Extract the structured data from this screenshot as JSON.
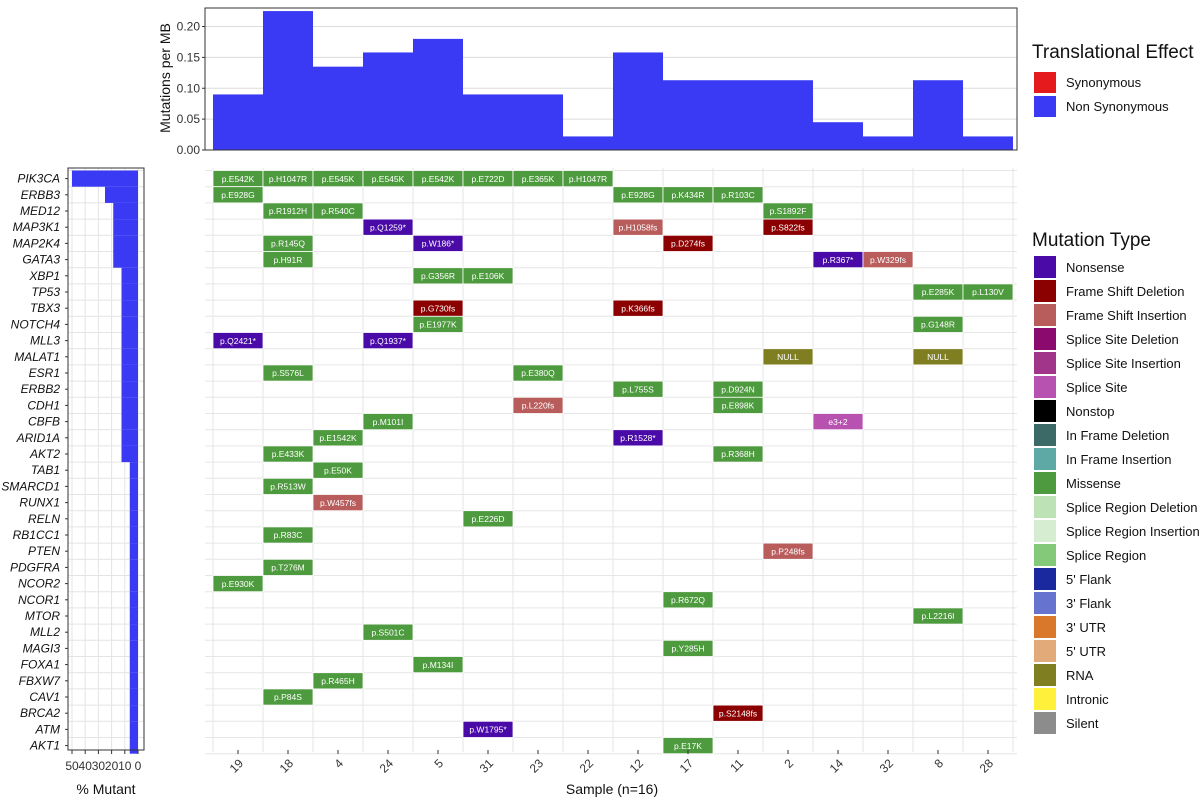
{
  "chart_data": [
    {
      "type": "bar",
      "panel": "mutation-burden",
      "ylabel": "Mutations per MB",
      "yticks": [
        "0.00",
        "0.05",
        "0.10",
        "0.15",
        "0.20"
      ],
      "ylim": [
        0,
        0.23
      ],
      "categories": [
        "19",
        "18",
        "4",
        "24",
        "5",
        "31",
        "23",
        "22",
        "12",
        "17",
        "11",
        "2",
        "14",
        "32",
        "8",
        "28"
      ],
      "series": [
        {
          "name": "Synonymous",
          "color": "#E41A1C",
          "values": [
            0,
            0,
            0,
            0,
            0,
            0,
            0,
            0,
            0,
            0,
            0,
            0,
            0,
            0,
            0,
            0
          ]
        },
        {
          "name": "Non Synonymous",
          "color": "#3A3AF5",
          "values": [
            0.09,
            0.225,
            0.135,
            0.158,
            0.18,
            0.09,
            0.09,
            0.022,
            0.158,
            0.113,
            0.113,
            0.113,
            0.045,
            0.022,
            0.113,
            0.022
          ]
        }
      ],
      "legend_title": "Translational Effect",
      "legend_position": "right"
    },
    {
      "type": "heatmap",
      "panel": "mutation-grid",
      "xlabel": "Sample (n=16)",
      "samples": [
        "19",
        "18",
        "4",
        "24",
        "5",
        "31",
        "23",
        "22",
        "12",
        "17",
        "11",
        "2",
        "14",
        "32",
        "8",
        "28"
      ],
      "genes": [
        "PIK3CA",
        "ERBB3",
        "MED12",
        "MAP3K1",
        "MAP2K4",
        "GATA3",
        "XBP1",
        "TP53",
        "TBX3",
        "NOTCH4",
        "MLL3",
        "MALAT1",
        "ESR1",
        "ERBB2",
        "CDH1",
        "CBFB",
        "ARID1A",
        "AKT2",
        "TAB1",
        "SMARCD1",
        "RUNX1",
        "RELN",
        "RB1CC1",
        "PTEN",
        "PDGFRA",
        "NCOR2",
        "NCOR1",
        "MTOR",
        "MLL2",
        "MAGI3",
        "FOXA1",
        "FBXW7",
        "CAV1",
        "BRCA2",
        "ATM",
        "AKT1"
      ],
      "cells": [
        {
          "g": "PIK3CA",
          "s": "19",
          "label": "p.E542K",
          "type": "Missense"
        },
        {
          "g": "PIK3CA",
          "s": "18",
          "label": "p.H1047R",
          "type": "Missense"
        },
        {
          "g": "PIK3CA",
          "s": "4",
          "label": "p.E545K",
          "type": "Missense"
        },
        {
          "g": "PIK3CA",
          "s": "24",
          "label": "p.E545K",
          "type": "Missense"
        },
        {
          "g": "PIK3CA",
          "s": "5",
          "label": "p.E542K",
          "type": "Missense"
        },
        {
          "g": "PIK3CA",
          "s": "31",
          "label": "p.E722D",
          "type": "Missense"
        },
        {
          "g": "PIK3CA",
          "s": "23",
          "label": "p.E365K",
          "type": "Missense"
        },
        {
          "g": "PIK3CA",
          "s": "22",
          "label": "p.H1047R",
          "type": "Missense"
        },
        {
          "g": "ERBB3",
          "s": "19",
          "label": "p.E928G",
          "type": "Missense"
        },
        {
          "g": "ERBB3",
          "s": "12",
          "label": "p.E928G",
          "type": "Missense"
        },
        {
          "g": "ERBB3",
          "s": "17",
          "label": "p.K434R",
          "type": "Missense"
        },
        {
          "g": "ERBB3",
          "s": "11",
          "label": "p.R103C",
          "type": "Missense"
        },
        {
          "g": "MED12",
          "s": "18",
          "label": "p.R1912H",
          "type": "Missense"
        },
        {
          "g": "MED12",
          "s": "4",
          "label": "p.R540C",
          "type": "Missense"
        },
        {
          "g": "MED12",
          "s": "2",
          "label": "p.S1892F",
          "type": "Missense"
        },
        {
          "g": "MAP3K1",
          "s": "24",
          "label": "p.Q1259*",
          "type": "Nonsense"
        },
        {
          "g": "MAP3K1",
          "s": "12",
          "label": "p.H1058fs",
          "type": "Frame Shift Insertion"
        },
        {
          "g": "MAP3K1",
          "s": "2",
          "label": "p.S822fs",
          "type": "Frame Shift Deletion"
        },
        {
          "g": "MAP2K4",
          "s": "18",
          "label": "p.R145Q",
          "type": "Missense"
        },
        {
          "g": "MAP2K4",
          "s": "5",
          "label": "p.W186*",
          "type": "Nonsense"
        },
        {
          "g": "MAP2K4",
          "s": "17",
          "label": "p.D274fs",
          "type": "Frame Shift Deletion"
        },
        {
          "g": "GATA3",
          "s": "18",
          "label": "p.H91R",
          "type": "Missense"
        },
        {
          "g": "GATA3",
          "s": "14",
          "label": "p.R367*",
          "type": "Nonsense"
        },
        {
          "g": "GATA3",
          "s": "32",
          "label": "p.W329fs",
          "type": "Frame Shift Insertion"
        },
        {
          "g": "XBP1",
          "s": "5",
          "label": "p.G356R",
          "type": "Missense"
        },
        {
          "g": "XBP1",
          "s": "31",
          "label": "p.E106K",
          "type": "Missense"
        },
        {
          "g": "TP53",
          "s": "8",
          "label": "p.E285K",
          "type": "Missense"
        },
        {
          "g": "TP53",
          "s": "28",
          "label": "p.L130V",
          "type": "Missense"
        },
        {
          "g": "TBX3",
          "s": "5",
          "label": "p.G730fs",
          "type": "Frame Shift Deletion"
        },
        {
          "g": "TBX3",
          "s": "12",
          "label": "p.K366fs",
          "type": "Frame Shift Deletion"
        },
        {
          "g": "NOTCH4",
          "s": "5",
          "label": "p.E1977K",
          "type": "Missense"
        },
        {
          "g": "NOTCH4",
          "s": "8",
          "label": "p.G148R",
          "type": "Missense"
        },
        {
          "g": "MLL3",
          "s": "19",
          "label": "p.Q2421*",
          "type": "Nonsense"
        },
        {
          "g": "MLL3",
          "s": "24",
          "label": "p.Q1937*",
          "type": "Nonsense"
        },
        {
          "g": "MALAT1",
          "s": "2",
          "label": "NULL",
          "type": "RNA"
        },
        {
          "g": "MALAT1",
          "s": "8",
          "label": "NULL",
          "type": "RNA"
        },
        {
          "g": "ESR1",
          "s": "18",
          "label": "p.S576L",
          "type": "Missense"
        },
        {
          "g": "ESR1",
          "s": "23",
          "label": "p.E380Q",
          "type": "Missense"
        },
        {
          "g": "ERBB2",
          "s": "12",
          "label": "p.L755S",
          "type": "Missense"
        },
        {
          "g": "ERBB2",
          "s": "11",
          "label": "p.D924N",
          "type": "Missense"
        },
        {
          "g": "CDH1",
          "s": "23",
          "label": "p.L220fs",
          "type": "Frame Shift Insertion"
        },
        {
          "g": "CDH1",
          "s": "11",
          "label": "p.E898K",
          "type": "Missense"
        },
        {
          "g": "CBFB",
          "s": "24",
          "label": "p.M101I",
          "type": "Missense"
        },
        {
          "g": "CBFB",
          "s": "14",
          "label": "e3+2",
          "type": "Splice Site"
        },
        {
          "g": "ARID1A",
          "s": "4",
          "label": "p.E1542K",
          "type": "Missense"
        },
        {
          "g": "ARID1A",
          "s": "12",
          "label": "p.R1528*",
          "type": "Nonsense"
        },
        {
          "g": "AKT2",
          "s": "18",
          "label": "p.E433K",
          "type": "Missense"
        },
        {
          "g": "AKT2",
          "s": "11",
          "label": "p.R368H",
          "type": "Missense"
        },
        {
          "g": "TAB1",
          "s": "4",
          "label": "p.E50K",
          "type": "Missense"
        },
        {
          "g": "SMARCD1",
          "s": "18",
          "label": "p.R513W",
          "type": "Missense"
        },
        {
          "g": "RUNX1",
          "s": "4",
          "label": "p.W457fs",
          "type": "Frame Shift Insertion"
        },
        {
          "g": "RELN",
          "s": "31",
          "label": "p.E226D",
          "type": "Missense"
        },
        {
          "g": "RB1CC1",
          "s": "18",
          "label": "p.R83C",
          "type": "Missense"
        },
        {
          "g": "PTEN",
          "s": "2",
          "label": "p.P248fs",
          "type": "Frame Shift Insertion"
        },
        {
          "g": "PDGFRA",
          "s": "18",
          "label": "p.T276M",
          "type": "Missense"
        },
        {
          "g": "NCOR2",
          "s": "19",
          "label": "p.E930K",
          "type": "Missense"
        },
        {
          "g": "NCOR1",
          "s": "17",
          "label": "p.R672Q",
          "type": "Missense"
        },
        {
          "g": "MTOR",
          "s": "8",
          "label": "p.L2216I",
          "type": "Missense"
        },
        {
          "g": "MLL2",
          "s": "24",
          "label": "p.S501C",
          "type": "Missense"
        },
        {
          "g": "MAGI3",
          "s": "17",
          "label": "p.Y285H",
          "type": "Missense"
        },
        {
          "g": "FOXA1",
          "s": "5",
          "label": "p.M134I",
          "type": "Missense"
        },
        {
          "g": "FBXW7",
          "s": "4",
          "label": "p.R465H",
          "type": "Missense"
        },
        {
          "g": "CAV1",
          "s": "18",
          "label": "p.P84S",
          "type": "Missense"
        },
        {
          "g": "BRCA2",
          "s": "11",
          "label": "p.S2148fs",
          "type": "Frame Shift Deletion"
        },
        {
          "g": "ATM",
          "s": "31",
          "label": "p.W1795*",
          "type": "Nonsense"
        },
        {
          "g": "AKT1",
          "s": "17",
          "label": "p.E17K",
          "type": "Missense"
        }
      ],
      "legend_title": "Mutation Type",
      "legend_position": "right",
      "mutation_types": [
        {
          "name": "Nonsense",
          "color": "#4A0AA8"
        },
        {
          "name": "Frame Shift Deletion",
          "color": "#8B0000"
        },
        {
          "name": "Frame Shift Insertion",
          "color": "#B85C5C"
        },
        {
          "name": "Splice Site Deletion",
          "color": "#8B0A6E"
        },
        {
          "name": "Splice Site Insertion",
          "color": "#A0358A"
        },
        {
          "name": "Splice Site",
          "color": "#B852B0"
        },
        {
          "name": "Nonstop",
          "color": "#000000"
        },
        {
          "name": "In Frame Deletion",
          "color": "#3C6A66"
        },
        {
          "name": "In Frame Insertion",
          "color": "#5EA8A6"
        },
        {
          "name": "Missense",
          "color": "#4E9A3E"
        },
        {
          "name": "Splice Region Deletion",
          "color": "#BDE2B5"
        },
        {
          "name": "Splice Region Insertion",
          "color": "#D7EDD2"
        },
        {
          "name": "Splice Region",
          "color": "#84C97A"
        },
        {
          "name": "5' Flank",
          "color": "#1A2A9E"
        },
        {
          "name": "3' Flank",
          "color": "#6674D0"
        },
        {
          "name": "3' UTR",
          "color": "#D9782A"
        },
        {
          "name": "5' UTR",
          "color": "#E2AA78"
        },
        {
          "name": "RNA",
          "color": "#7F7F22"
        },
        {
          "name": "Intronic",
          "color": "#FFF03C"
        },
        {
          "name": "Silent",
          "color": "#8C8C8C"
        }
      ]
    },
    {
      "type": "bar",
      "panel": "percent-mutant",
      "orientation": "horizontal",
      "xlabel": "% Mutant",
      "xticks": [
        "50",
        "40",
        "30",
        "20",
        "10",
        "0"
      ],
      "xlim": [
        0,
        50
      ],
      "categories": [
        "PIK3CA",
        "ERBB3",
        "MED12",
        "MAP3K1",
        "MAP2K4",
        "GATA3",
        "XBP1",
        "TP53",
        "TBX3",
        "NOTCH4",
        "MLL3",
        "MALAT1",
        "ESR1",
        "ERBB2",
        "CDH1",
        "CBFB",
        "ARID1A",
        "AKT2",
        "TAB1",
        "SMARCD1",
        "RUNX1",
        "RELN",
        "RB1CC1",
        "PTEN",
        "PDGFRA",
        "NCOR2",
        "NCOR1",
        "MTOR",
        "MLL2",
        "MAGI3",
        "FOXA1",
        "FBXW7",
        "CAV1",
        "BRCA2",
        "ATM",
        "AKT1"
      ],
      "values": [
        50,
        25,
        18.75,
        18.75,
        18.75,
        18.75,
        12.5,
        12.5,
        12.5,
        12.5,
        12.5,
        12.5,
        12.5,
        12.5,
        12.5,
        12.5,
        12.5,
        12.5,
        6.25,
        6.25,
        6.25,
        6.25,
        6.25,
        6.25,
        6.25,
        6.25,
        6.25,
        6.25,
        6.25,
        6.25,
        6.25,
        6.25,
        6.25,
        6.25,
        6.25,
        6.25
      ],
      "color": "#3A3AF5"
    }
  ]
}
